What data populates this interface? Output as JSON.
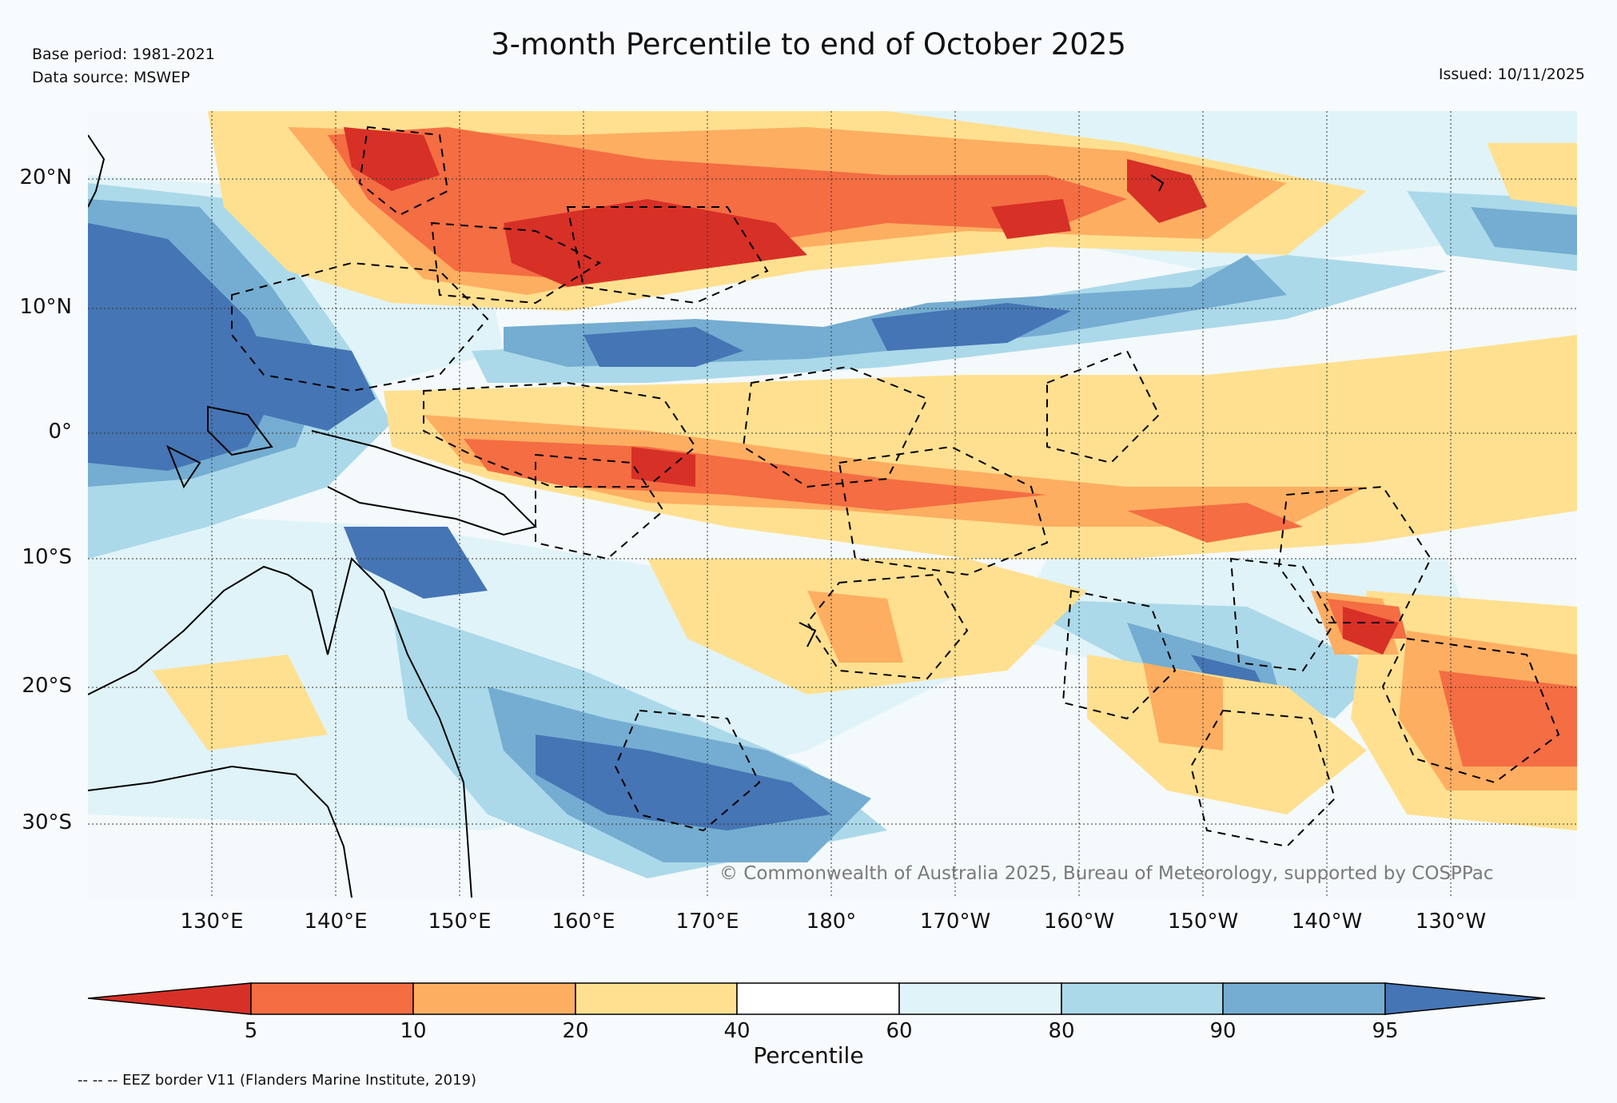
{
  "header": {
    "base_period": "Base period: 1981-2021",
    "data_source": "Data source: MSWEP",
    "title": "3-month Percentile to end of October 2025",
    "issued": "Issued: 10/11/2025"
  },
  "map": {
    "lat_labels": [
      "20°N",
      "10°N",
      "0°",
      "10°S",
      "20°S",
      "30°S"
    ],
    "lon_labels": [
      "130°E",
      "140°E",
      "150°E",
      "160°E",
      "170°E",
      "180°",
      "170°W",
      "160°W",
      "150°W",
      "140°W",
      "130°W"
    ],
    "copyright": "© Commonwealth of Australia 2025, Bureau of Meteorology, supported by COSPPac"
  },
  "colorbar": {
    "ticks": [
      "5",
      "10",
      "20",
      "40",
      "60",
      "80",
      "90",
      "95"
    ],
    "label": "Percentile",
    "colors": [
      "#d73027",
      "#f46d43",
      "#fdae61",
      "#fee090",
      "#ffffff",
      "#e0f3f8",
      "#abd9e9",
      "#74add1",
      "#4575b4"
    ]
  },
  "footnote": "-- -- -- EEZ border V11 (Flanders Marine Institute, 2019)"
}
